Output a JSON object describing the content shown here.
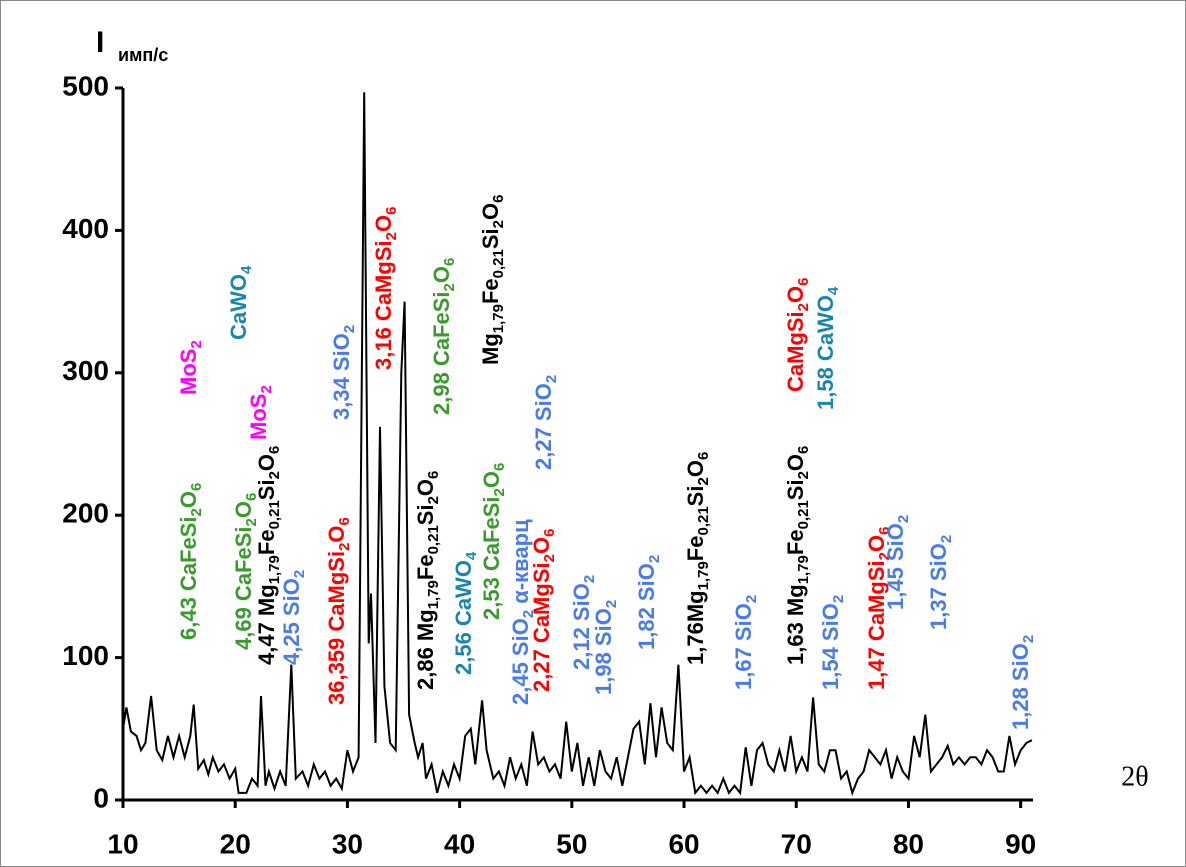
{
  "chart_data": {
    "type": "line",
    "y_label": "I",
    "y_unit": "имп/с",
    "x_label": "2θ",
    "xlim": [
      10,
      91.1
    ],
    "ylim": [
      0,
      500
    ],
    "xticks": [
      10,
      20,
      30,
      40,
      50,
      60,
      70,
      80,
      90
    ],
    "yticks": [
      0,
      100,
      200,
      300,
      400,
      500
    ],
    "color": "#000000",
    "x": [
      10,
      10.3,
      10.7,
      11.2,
      11.6,
      12,
      12.5,
      13,
      13.5,
      14,
      14.5,
      15,
      15.5,
      16,
      16.3,
      16.7,
      17.2,
      17.6,
      18,
      18.5,
      19,
      19.5,
      20,
      20.3,
      21,
      21.5,
      22,
      22.3,
      22.7,
      23,
      23.5,
      24,
      24.5,
      25,
      25.4,
      26,
      26.5,
      27,
      27.5,
      28,
      28.5,
      29,
      29.5,
      30,
      30.5,
      31,
      31.5,
      31.9,
      32.1,
      32.5,
      32.9,
      33.3,
      33.8,
      34.3,
      34.8,
      35.1,
      35.5,
      36,
      36.3,
      36.7,
      37,
      37.5,
      38,
      38.5,
      39,
      39.5,
      40,
      40.5,
      41,
      41.4,
      42,
      42.4,
      43,
      43.5,
      44,
      44.5,
      45,
      45.5,
      46,
      46.5,
      47,
      47.5,
      48,
      48.5,
      49,
      49.5,
      50,
      50.5,
      51,
      51.5,
      52,
      52.5,
      53,
      53.5,
      54,
      54.5,
      55,
      55.5,
      56,
      56.5,
      57,
      57.5,
      58,
      58.5,
      59,
      59.5,
      60,
      60.5,
      61,
      61.5,
      62,
      62.5,
      63,
      63.5,
      64,
      64.5,
      65,
      65.5,
      66,
      66.5,
      67,
      67.5,
      68,
      68.5,
      69,
      69.5,
      70,
      70.5,
      71,
      71.5,
      72,
      72.5,
      73,
      73.5,
      74,
      74.5,
      75,
      75.5,
      76,
      76.5,
      77,
      77.5,
      78,
      78.5,
      79,
      79.5,
      80,
      80.5,
      81,
      81.5,
      82,
      82.5,
      83,
      83.5,
      84,
      84.5,
      85,
      85.5,
      86,
      86.5,
      87,
      87.5,
      88,
      88.5,
      89,
      89.5,
      90,
      90.5,
      91
    ],
    "values": [
      50,
      65,
      48,
      45,
      35,
      40,
      73,
      35,
      28,
      45,
      30,
      45,
      30,
      45,
      67,
      22,
      28,
      18,
      30,
      20,
      25,
      15,
      22,
      5,
      5,
      15,
      10,
      73,
      10,
      20,
      8,
      20,
      10,
      95,
      15,
      20,
      10,
      25,
      15,
      20,
      10,
      15,
      8,
      35,
      20,
      30,
      497,
      110,
      145,
      40,
      262,
      80,
      40,
      35,
      300,
      350,
      60,
      40,
      30,
      40,
      15,
      25,
      5,
      20,
      10,
      25,
      15,
      45,
      50,
      25,
      70,
      35,
      15,
      20,
      10,
      30,
      15,
      25,
      10,
      48,
      25,
      30,
      20,
      25,
      15,
      55,
      20,
      40,
      10,
      30,
      10,
      35,
      20,
      15,
      30,
      10,
      30,
      50,
      55,
      25,
      68,
      30,
      65,
      40,
      35,
      95,
      20,
      30,
      5,
      10,
      5,
      10,
      5,
      15,
      5,
      10,
      5,
      37,
      10,
      35,
      40,
      25,
      20,
      35,
      20,
      45,
      20,
      30,
      20,
      72,
      25,
      20,
      35,
      35,
      15,
      20,
      5,
      15,
      20,
      35,
      30,
      25,
      35,
      15,
      30,
      20,
      15,
      45,
      30,
      60,
      20,
      25,
      30,
      38,
      25,
      30,
      25,
      30,
      30,
      25,
      35,
      30,
      20,
      20,
      45,
      25,
      35,
      40,
      42
    ],
    "annotations": [
      {
        "text": "6,43 CaFeSi2O6",
        "color": "#3a9a2e"
      },
      {
        "text": "MoS2",
        "color": "#ff00ff"
      },
      {
        "text": "CaWO4",
        "color": "#1a86ad"
      },
      {
        "text": "4,69 CaFeSi2O6",
        "color": "#3a9a2e"
      },
      {
        "text": "4,47 Mg1,79Fe0,21Si2O6",
        "color": "#000000"
      },
      {
        "text": "MoS2",
        "color": "#ff00ff"
      },
      {
        "text": "4,25 SiO2",
        "color": "#4a7be8"
      },
      {
        "text": "3,34 SiO2",
        "color": "#4a7be8"
      },
      {
        "text": "36,359 CaMgSi2O6",
        "color": "#ff0000"
      },
      {
        "text": "3,16 CaMgSi2O6",
        "color": "#ff0000"
      },
      {
        "text": "2,86 Mg1,79Fe0,21Si2O6",
        "color": "#000000"
      },
      {
        "text": "2,98 CaFeSi2O6",
        "color": "#3a9a2e"
      },
      {
        "text": "Mg1,79Fe0,21Si2O6",
        "color": "#000000"
      },
      {
        "text": "2,56 CaWO4",
        "color": "#1a86ad"
      },
      {
        "text": "2,53 CaFeSi2O6",
        "color": "#3a9a2e"
      },
      {
        "text": "2,45 SiO2 α-кварц",
        "color": "#4a7be8"
      },
      {
        "text": "2,27 CaMgSi2O6",
        "color": "#ff0000"
      },
      {
        "text": "2,27 SiO2",
        "color": "#4a7be8"
      },
      {
        "text": "2,12 SiO2",
        "color": "#4a7be8"
      },
      {
        "text": "1,98 SiO2",
        "color": "#4a7be8"
      },
      {
        "text": "1,82 SiO2",
        "color": "#4a7be8"
      },
      {
        "text": "1,76Mg1,79Fe0,21Si2O6",
        "color": "#000000"
      },
      {
        "text": "1,67 SiO2",
        "color": "#4a7be8"
      },
      {
        "text": "1,63 Mg1,79Fe0,21Si2O6",
        "color": "#000000"
      },
      {
        "text": "CaMgSi2O6",
        "color": "#ff0000"
      },
      {
        "text": "1,58 CaWO4",
        "color": "#1a86ad"
      },
      {
        "text": "1,54 SiO2",
        "color": "#4a7be8"
      },
      {
        "text": "1,47 CaMgSi2O6",
        "color": "#ff0000"
      },
      {
        "text": "1,45 SiO2",
        "color": "#4a7be8"
      },
      {
        "text": "1,37 SiO2",
        "color": "#4a7be8"
      },
      {
        "text": "1,28 SiO2",
        "color": "#4a7be8"
      }
    ]
  }
}
